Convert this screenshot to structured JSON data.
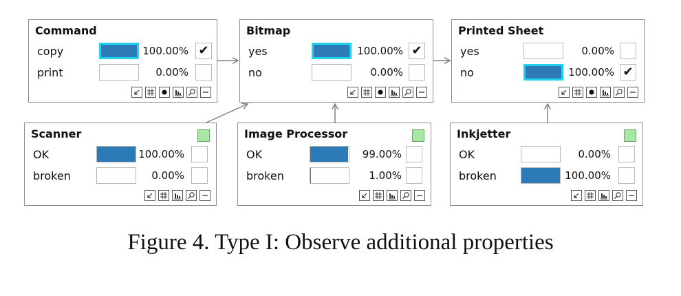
{
  "nodes": [
    {
      "id": "command",
      "title": "Command",
      "evidence": false,
      "states": [
        {
          "label": "copy",
          "value": 100,
          "percent": "100.00%",
          "checked": true,
          "highlight": true
        },
        {
          "label": "print",
          "value": 0,
          "percent": "0.00%",
          "checked": false,
          "highlight": false
        }
      ],
      "toolbar": [
        "arrow-icon",
        "table-icon",
        "dot-icon",
        "chart-icon",
        "zoom-icon",
        "minimize-icon"
      ]
    },
    {
      "id": "bitmap",
      "title": "Bitmap",
      "evidence": false,
      "states": [
        {
          "label": "yes",
          "value": 100,
          "percent": "100.00%",
          "checked": true,
          "highlight": true
        },
        {
          "label": "no",
          "value": 0,
          "percent": "0.00%",
          "checked": false,
          "highlight": false
        }
      ],
      "toolbar": [
        "arrow-icon",
        "table-icon",
        "dot-icon",
        "chart-icon",
        "zoom-icon",
        "minimize-icon"
      ]
    },
    {
      "id": "printed-sheet",
      "title": "Printed Sheet",
      "evidence": false,
      "states": [
        {
          "label": "yes",
          "value": 0,
          "percent": "0.00%",
          "checked": false,
          "highlight": false
        },
        {
          "label": "no",
          "value": 100,
          "percent": "100.00%",
          "checked": true,
          "highlight": true
        }
      ],
      "toolbar": [
        "arrow-icon",
        "table-icon",
        "dot-icon",
        "chart-icon",
        "zoom-icon",
        "minimize-icon"
      ]
    },
    {
      "id": "scanner",
      "title": "Scanner",
      "evidence": true,
      "states": [
        {
          "label": "OK",
          "value": 100,
          "percent": "100.00%",
          "checked": false,
          "highlight": false
        },
        {
          "label": "broken",
          "value": 0,
          "percent": "0.00%",
          "checked": false,
          "highlight": false
        }
      ],
      "toolbar": [
        "arrow-icon",
        "table-icon",
        "chart-icon",
        "zoom-icon",
        "minimize-icon"
      ]
    },
    {
      "id": "image-processor",
      "title": "Image Processor",
      "evidence": true,
      "states": [
        {
          "label": "OK",
          "value": 99,
          "percent": "99.00%",
          "checked": false,
          "highlight": false
        },
        {
          "label": "broken",
          "value": 1,
          "percent": "1.00%",
          "checked": false,
          "highlight": false
        }
      ],
      "toolbar": [
        "arrow-icon",
        "table-icon",
        "chart-icon",
        "zoom-icon",
        "minimize-icon"
      ]
    },
    {
      "id": "inkjetter",
      "title": "Inkjetter",
      "evidence": true,
      "states": [
        {
          "label": "OK",
          "value": 0,
          "percent": "0.00%",
          "checked": false,
          "highlight": false
        },
        {
          "label": "broken",
          "value": 100,
          "percent": "100.00%",
          "checked": false,
          "highlight": false
        }
      ],
      "toolbar": [
        "arrow-icon",
        "table-icon",
        "chart-icon",
        "zoom-icon",
        "minimize-icon"
      ]
    }
  ],
  "edges": [
    {
      "from": "command",
      "to": "bitmap"
    },
    {
      "from": "bitmap",
      "to": "printed-sheet"
    },
    {
      "from": "scanner",
      "to": "bitmap"
    },
    {
      "from": "image-processor",
      "to": "bitmap"
    },
    {
      "from": "inkjetter",
      "to": "printed-sheet"
    }
  ],
  "colors": {
    "bar": "#2c7bb6",
    "highlight": "#22d3f0",
    "evidence": "#a8e6a3",
    "border": "#8c8c8c"
  },
  "caption": "Figure 4. Type I: Observe additional properties"
}
